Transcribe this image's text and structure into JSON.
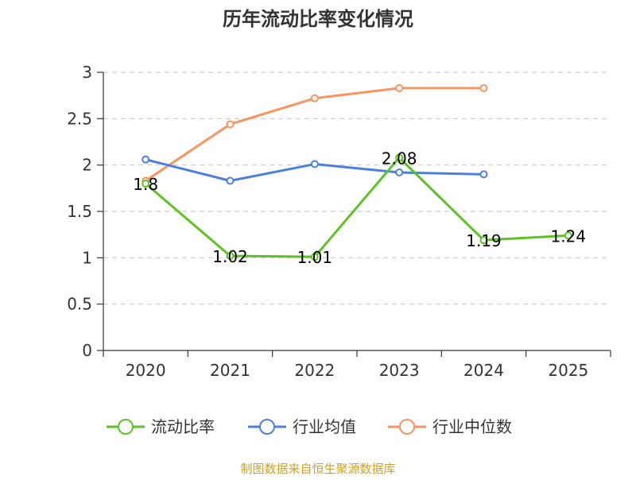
{
  "chart_data": {
    "type": "line",
    "title": "历年流动比率变化情况",
    "categories": [
      "2020",
      "2021",
      "2022",
      "2023",
      "2024",
      "2025"
    ],
    "ylim": [
      0,
      3
    ],
    "yticks": [
      "0",
      "0.5",
      "1",
      "1.5",
      "2",
      "2.5",
      "3"
    ],
    "ytick_values": [
      0,
      0.5,
      1,
      1.5,
      2,
      2.5,
      3
    ],
    "grid": true,
    "legend_position": "bottom",
    "series": [
      {
        "name": "流动比率",
        "color": "#5ec125",
        "values": [
          1.8,
          1.02,
          1.01,
          2.08,
          1.19,
          1.24
        ],
        "labels": [
          "1.8",
          "1.02",
          "1.01",
          "2.08",
          "1.19",
          "1.24"
        ]
      },
      {
        "name": "行业均值",
        "color": "#4d7fdc",
        "values": [
          2.06,
          1.83,
          2.01,
          1.92,
          1.9,
          null
        ]
      },
      {
        "name": "行业中位数",
        "color": "#f89460",
        "values": [
          1.83,
          2.44,
          2.72,
          2.83,
          2.83,
          null
        ]
      }
    ]
  },
  "source_text": "制图数据来自恒生聚源数据库"
}
